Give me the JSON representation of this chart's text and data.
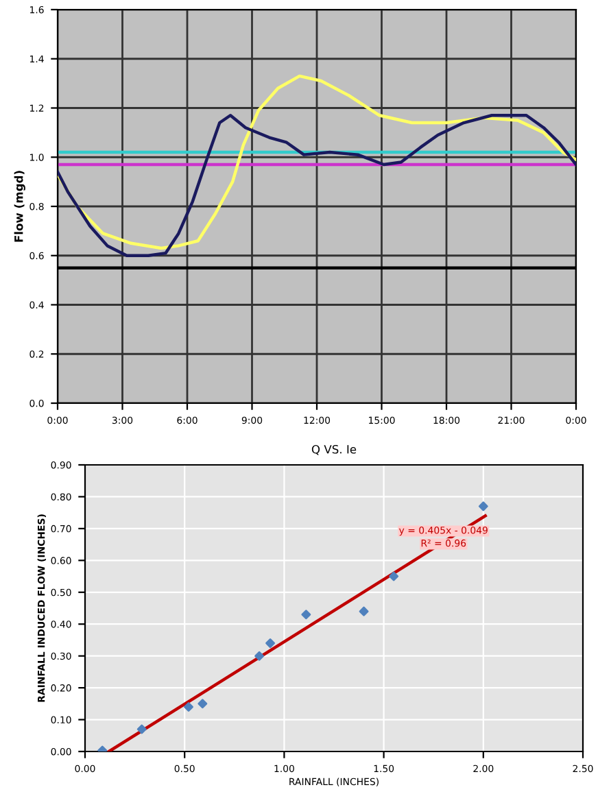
{
  "chart_data": [
    {
      "type": "line",
      "ylabel": "Flow (mgd)",
      "xlim": [
        0,
        24
      ],
      "ylim": [
        0,
        1.6
      ],
      "xticks": [
        {
          "value": 0,
          "label": "0:00"
        },
        {
          "value": 3,
          "label": "3:00"
        },
        {
          "value": 6,
          "label": "6:00"
        },
        {
          "value": 9,
          "label": "9:00"
        },
        {
          "value": 12,
          "label": "12:00"
        },
        {
          "value": 15,
          "label": "15:00"
        },
        {
          "value": 18,
          "label": "18:00"
        },
        {
          "value": 21,
          "label": "21:00"
        },
        {
          "value": 24,
          "label": "0:00"
        }
      ],
      "yticks": [
        {
          "value": 0,
          "label": "0.0"
        },
        0.2,
        0.4,
        0.6,
        0.8,
        {
          "value": 1,
          "label": "1.0"
        },
        1.2,
        1.4,
        1.6
      ],
      "grid": true,
      "marker": "none",
      "line_style": "solid",
      "series": [
        {
          "color": "#ffff66",
          "x": [
            0,
            0.9,
            2.1,
            3.4,
            4.8,
            5.6,
            6.5,
            7.3,
            8.1,
            8.6,
            9.3,
            10.2,
            11.2,
            12.2,
            13.5,
            14.9,
            16.4,
            18.0,
            19.7,
            21.3,
            22.5,
            23.4,
            24
          ],
          "values": [
            0.93,
            0.8,
            0.69,
            0.65,
            0.63,
            0.64,
            0.66,
            0.77,
            0.9,
            1.05,
            1.19,
            1.28,
            1.33,
            1.31,
            1.25,
            1.17,
            1.14,
            1.14,
            1.16,
            1.15,
            1.1,
            1.02,
            0.99
          ]
        },
        {
          "color": "#1a1a5e",
          "x": [
            0,
            0.47,
            1.5,
            2.3,
            3.2,
            4.2,
            5.0,
            5.6,
            6.25,
            6.9,
            7.5,
            8.0,
            8.7,
            9.8,
            10.6,
            11.4,
            12.6,
            13.9,
            15.1,
            15.9,
            16.8,
            17.6,
            18.8,
            20.1,
            21.7,
            22.5,
            23.2,
            24
          ],
          "values": [
            0.94,
            0.86,
            0.72,
            0.64,
            0.6,
            0.6,
            0.61,
            0.69,
            0.82,
            0.99,
            1.14,
            1.17,
            1.12,
            1.08,
            1.06,
            1.01,
            1.02,
            1.01,
            0.97,
            0.98,
            1.04,
            1.09,
            1.14,
            1.17,
            1.17,
            1.12,
            1.06,
            0.97
          ]
        }
      ],
      "ref_lines": [
        {
          "axis": "y",
          "value": 1.02,
          "color": "#33cccc"
        },
        {
          "axis": "y",
          "value": 0.97,
          "color": "#cc33cc"
        },
        {
          "axis": "y",
          "value": 0.55,
          "color": "#000000"
        }
      ]
    },
    {
      "type": "scatter",
      "title": "Q VS. Ie",
      "xlabel": "RAINFALL (INCHES)",
      "ylabel": "RAINFALL INDUCED FLOW (INCHES)",
      "xlim": [
        0,
        2.5
      ],
      "ylim": [
        0,
        0.9
      ],
      "xticks": [
        {
          "value": 0,
          "label": "0.00"
        },
        {
          "value": 0.5,
          "label": "0.50"
        },
        {
          "value": 1,
          "label": "1.00"
        },
        {
          "value": 1.5,
          "label": "1.50"
        },
        {
          "value": 2,
          "label": "2.00"
        },
        {
          "value": 2.5,
          "label": "2.50"
        }
      ],
      "yticks": [
        {
          "value": 0,
          "label": "0.00"
        },
        {
          "value": 0.1,
          "label": "0.10"
        },
        {
          "value": 0.2,
          "label": "0.20"
        },
        {
          "value": 0.3,
          "label": "0.30"
        },
        {
          "value": 0.4,
          "label": "0.40"
        },
        {
          "value": 0.5,
          "label": "0.50"
        },
        {
          "value": 0.6,
          "label": "0.60"
        },
        {
          "value": 0.7,
          "label": "0.70"
        },
        {
          "value": 0.8,
          "label": "0.80"
        },
        {
          "value": 0.9,
          "label": "0.90"
        }
      ],
      "grid": true,
      "series": [
        {
          "color": "#4f81bd",
          "marker": "diamond",
          "x": [
            0.087,
            0.285,
            0.52,
            0.59,
            0.875,
            0.93,
            1.11,
            1.4,
            1.55,
            2.0
          ],
          "values": [
            0.003,
            0.07,
            0.14,
            0.15,
            0.3,
            0.34,
            0.43,
            0.44,
            0.55,
            0.77
          ]
        },
        {
          "type": "line",
          "color": "#c00000",
          "x": [
            0.12,
            2.01
          ],
          "values": [
            0.0,
            0.74
          ]
        }
      ],
      "annotations": [
        "y = 0.405x - 0.049",
        "R² = 0.96"
      ]
    }
  ]
}
